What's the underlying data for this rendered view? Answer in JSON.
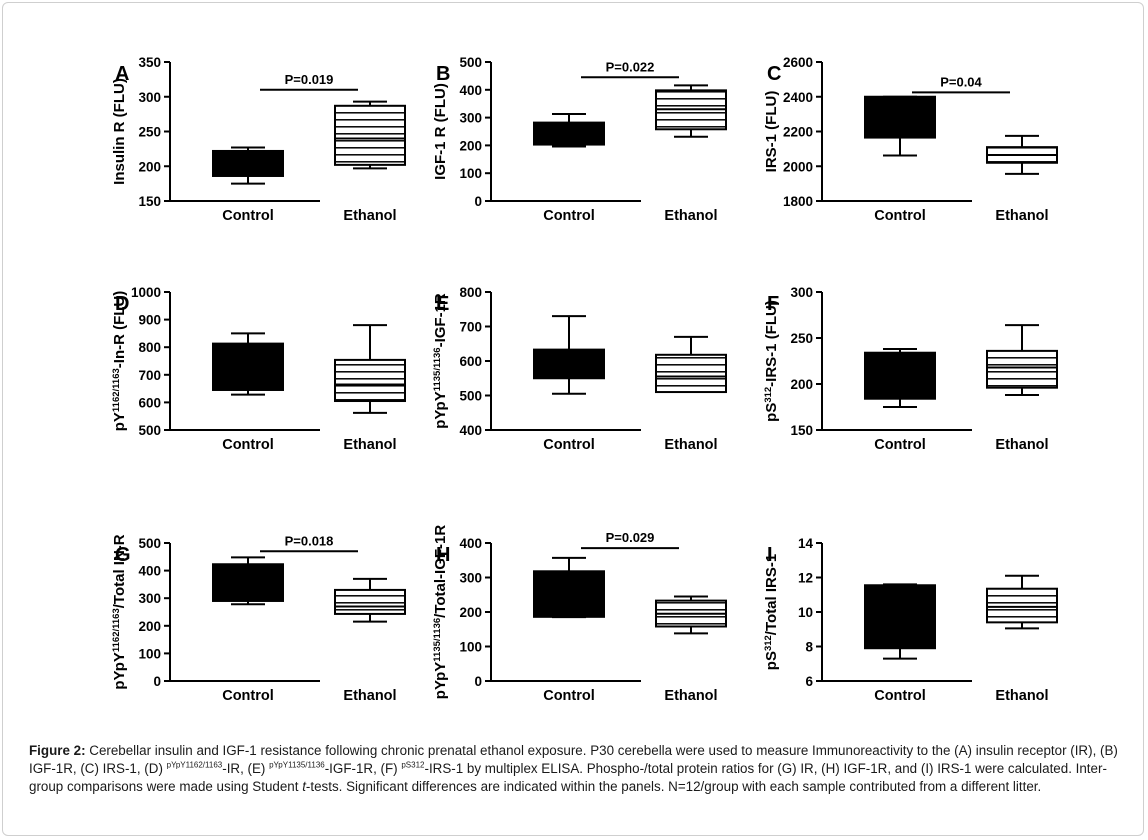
{
  "colors": {
    "box_fill_control": "#000000",
    "box_stripe_ethanol": "#000000",
    "background": "#ffffff"
  },
  "chart_data": [
    {
      "panel": "A",
      "type": "box",
      "ylabel_parts": [
        {
          "t": "Insulin R (FLU)"
        }
      ],
      "ylim": [
        150,
        350
      ],
      "yticks": [
        150,
        200,
        250,
        300,
        350
      ],
      "categories": [
        "Control",
        "Ethanol"
      ],
      "series": [
        {
          "category": "Control",
          "min": 175,
          "q1": 186,
          "median": 203,
          "q3": 222,
          "max": 227,
          "style": "solid"
        },
        {
          "category": "Ethanol",
          "min": 197,
          "q1": 202,
          "median": 240,
          "q3": 287,
          "max": 293,
          "style": "striped"
        }
      ],
      "annotation": "P=0.019",
      "annotation_y": 310
    },
    {
      "panel": "B",
      "type": "box",
      "ylabel_parts": [
        {
          "t": "IGF-1 R (FLU)"
        }
      ],
      "ylim": [
        0,
        500
      ],
      "yticks": [
        0,
        100,
        200,
        300,
        400,
        500
      ],
      "categories": [
        "Control",
        "Ethanol"
      ],
      "series": [
        {
          "category": "Control",
          "min": 196,
          "q1": 203,
          "median": 230,
          "q3": 282,
          "max": 313,
          "style": "solid"
        },
        {
          "category": "Ethanol",
          "min": 231,
          "q1": 258,
          "median": 330,
          "q3": 398,
          "max": 416,
          "style": "striped"
        }
      ],
      "annotation": "P=0.022",
      "annotation_y": 445
    },
    {
      "panel": "C",
      "type": "box",
      "ylabel_parts": [
        {
          "t": "IRS-1 (FLU)"
        }
      ],
      "ylim": [
        1800,
        2600
      ],
      "yticks": [
        1800,
        2000,
        2200,
        2400,
        2600
      ],
      "categories": [
        "Control",
        "Ethanol"
      ],
      "series": [
        {
          "category": "Control",
          "min": 2062,
          "q1": 2165,
          "median": 2380,
          "q3": 2400,
          "max": 2400,
          "style": "solid"
        },
        {
          "category": "Ethanol",
          "min": 1956,
          "q1": 2020,
          "median": 2065,
          "q3": 2110,
          "max": 2175,
          "style": "striped"
        }
      ],
      "annotation": "P=0.04",
      "annotation_y": 2425
    },
    {
      "panel": "D",
      "type": "box",
      "ylabel_parts": [
        {
          "t": "pY"
        },
        {
          "t": "1162/1163",
          "sup": true
        },
        {
          "t": "-In-R (FLU)"
        }
      ],
      "ylim": [
        500,
        1000
      ],
      "yticks": [
        500,
        600,
        700,
        800,
        900,
        1000
      ],
      "categories": [
        "Control",
        "Ethanol"
      ],
      "series": [
        {
          "category": "Control",
          "min": 628,
          "q1": 645,
          "median": 720,
          "q3": 813,
          "max": 850,
          "style": "solid"
        },
        {
          "category": "Ethanol",
          "min": 562,
          "q1": 605,
          "median": 665,
          "q3": 754,
          "max": 880,
          "style": "striped"
        }
      ],
      "annotation": "",
      "annotation_y": null
    },
    {
      "panel": "E",
      "type": "box",
      "ylabel_parts": [
        {
          "t": "pYpY"
        },
        {
          "t": "1135/1136",
          "sup": true
        },
        {
          "t": "-IGF-1R"
        }
      ],
      "ylim": [
        400,
        800
      ],
      "yticks": [
        400,
        500,
        600,
        700,
        800
      ],
      "categories": [
        "Control",
        "Ethanol"
      ],
      "series": [
        {
          "category": "Control",
          "min": 505,
          "q1": 550,
          "median": 590,
          "q3": 633,
          "max": 730,
          "style": "solid"
        },
        {
          "category": "Ethanol",
          "min": 510,
          "q1": 510,
          "median": 555,
          "q3": 618,
          "max": 670,
          "style": "striped"
        }
      ],
      "annotation": "",
      "annotation_y": null
    },
    {
      "panel": "F",
      "type": "box",
      "ylabel_parts": [
        {
          "t": "pS"
        },
        {
          "t": "312",
          "sup": true
        },
        {
          "t": "-IRS-1  (FLU)"
        }
      ],
      "ylim": [
        150,
        300
      ],
      "yticks": [
        150,
        200,
        250,
        300
      ],
      "categories": [
        "Control",
        "Ethanol"
      ],
      "series": [
        {
          "category": "Control",
          "min": 175,
          "q1": 184,
          "median": 212,
          "q3": 234,
          "max": 238,
          "style": "solid"
        },
        {
          "category": "Ethanol",
          "min": 188,
          "q1": 196,
          "median": 218,
          "q3": 236,
          "max": 264,
          "style": "striped"
        }
      ],
      "annotation": "",
      "annotation_y": null
    },
    {
      "panel": "G",
      "type": "box",
      "ylabel_parts": [
        {
          "t": "pYpY"
        },
        {
          "t": "1162/1163",
          "sup": true
        },
        {
          "t": "/Total IN-R"
        }
      ],
      "ylim": [
        0,
        500
      ],
      "yticks": [
        0,
        100,
        200,
        300,
        400,
        500
      ],
      "categories": [
        "Control",
        "Ethanol"
      ],
      "series": [
        {
          "category": "Control",
          "min": 278,
          "q1": 290,
          "median": 360,
          "q3": 423,
          "max": 448,
          "style": "solid"
        },
        {
          "category": "Ethanol",
          "min": 215,
          "q1": 243,
          "median": 270,
          "q3": 330,
          "max": 370,
          "style": "striped"
        }
      ],
      "annotation": "P=0.018",
      "annotation_y": 470
    },
    {
      "panel": "H",
      "type": "box",
      "ylabel_parts": [
        {
          "t": "pYpY"
        },
        {
          "t": "1135/1136",
          "sup": true
        },
        {
          "t": "/Total-IGF-1R"
        }
      ],
      "ylim": [
        0,
        400
      ],
      "yticks": [
        0,
        100,
        200,
        300,
        400
      ],
      "categories": [
        "Control",
        "Ethanol"
      ],
      "series": [
        {
          "category": "Control",
          "min": 185,
          "q1": 186,
          "median": 240,
          "q3": 318,
          "max": 357,
          "style": "solid"
        },
        {
          "category": "Ethanol",
          "min": 138,
          "q1": 158,
          "median": 195,
          "q3": 233,
          "max": 245,
          "style": "striped"
        }
      ],
      "annotation": "P=0.029",
      "annotation_y": 385
    },
    {
      "panel": "I",
      "type": "box",
      "ylabel_parts": [
        {
          "t": "pS"
        },
        {
          "t": "312",
          "sup": true
        },
        {
          "t": "/Total IRS-1"
        }
      ],
      "ylim": [
        6,
        14
      ],
      "yticks": [
        6,
        8,
        10,
        12,
        14
      ],
      "categories": [
        "Control",
        "Ethanol"
      ],
      "series": [
        {
          "category": "Control",
          "min": 7.3,
          "q1": 7.9,
          "median": 9.7,
          "q3": 11.55,
          "max": 11.6,
          "style": "solid"
        },
        {
          "category": "Ethanol",
          "min": 9.05,
          "q1": 9.4,
          "median": 10.3,
          "q3": 11.35,
          "max": 12.1,
          "style": "striped"
        }
      ],
      "annotation": "",
      "annotation_y": null
    }
  ],
  "caption": {
    "label": "Figure 2:",
    "parts": [
      {
        "t": " Cerebellar insulin and IGF-1 resistance following chronic prenatal ethanol exposure. P30 cerebella were used to measure Immunoreactivity to the (A) insulin receptor (IR), (B) IGF-1R, (C) IRS-1, (D) "
      },
      {
        "t": "pYpY1162/1163",
        "sup": true
      },
      {
        "t": "-IR, (E) "
      },
      {
        "t": "pYpY1135/1136",
        "sup": true
      },
      {
        "t": "-IGF-1R, (F) "
      },
      {
        "t": "pS312",
        "sup": true
      },
      {
        "t": "-IRS-1 by multiplex ELISA.  Phospho-/total protein ratios for (G) IR, (H) IGF-1R, and (I) IRS-1 were calculated. Inter-group comparisons were made using Student "
      },
      {
        "t": "t",
        "italic": true
      },
      {
        "t": "-tests. Significant differences are indicated within the panels. N=12/group with each sample contributed from a different litter."
      }
    ]
  }
}
